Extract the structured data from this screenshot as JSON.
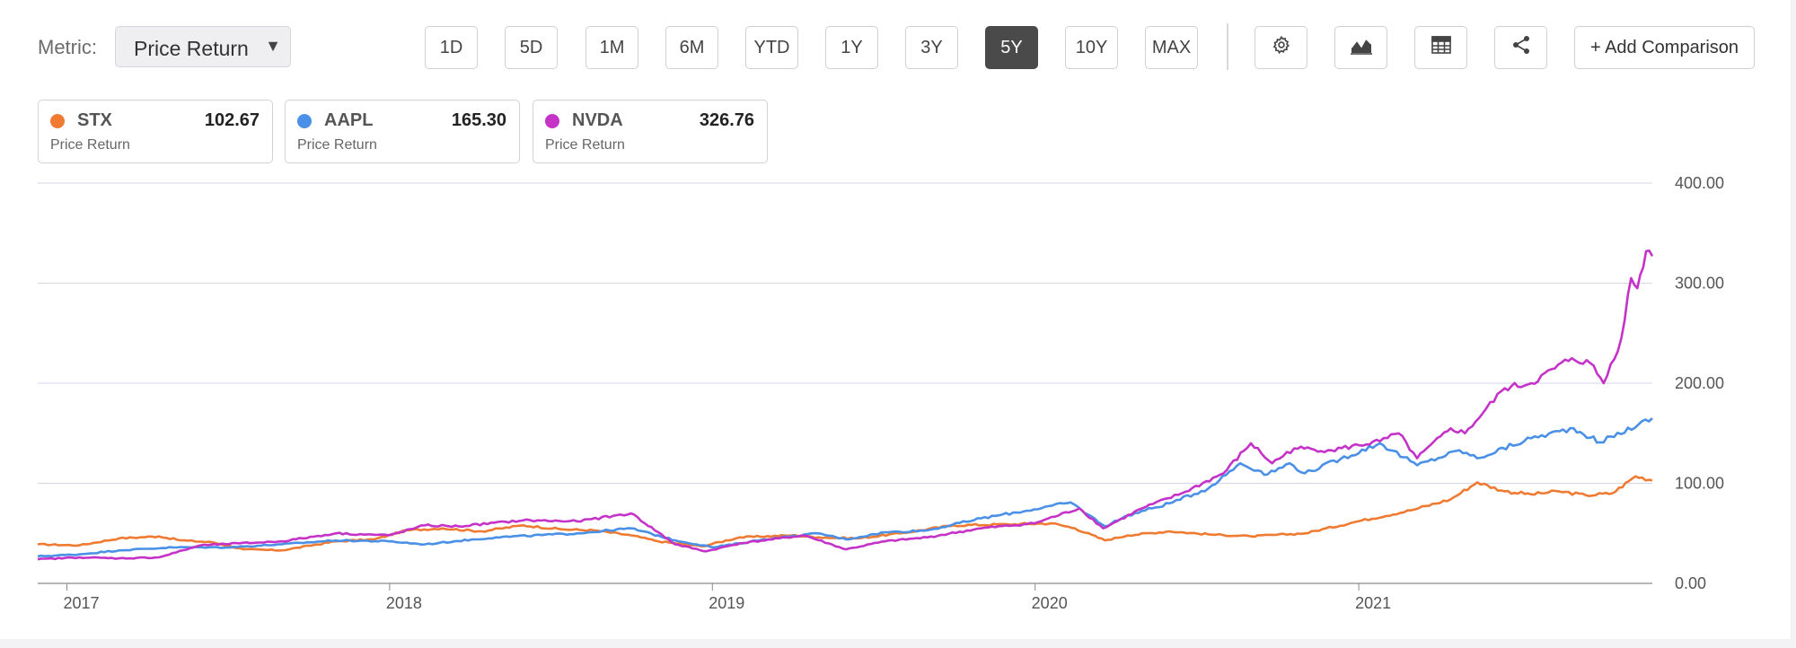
{
  "toolbar": {
    "metric_label": "Metric:",
    "metric_value": "Price Return",
    "ranges": [
      {
        "label": "1D",
        "active": false
      },
      {
        "label": "5D",
        "active": false
      },
      {
        "label": "1M",
        "active": false
      },
      {
        "label": "6M",
        "active": false
      },
      {
        "label": "YTD",
        "active": false
      },
      {
        "label": "1Y",
        "active": false
      },
      {
        "label": "3Y",
        "active": false
      },
      {
        "label": "5Y",
        "active": true
      },
      {
        "label": "10Y",
        "active": false
      },
      {
        "label": "MAX",
        "active": false
      }
    ],
    "icons": [
      "gear-icon",
      "chart-type-icon",
      "table-icon",
      "share-icon"
    ],
    "add_comparison": "+ Add Comparison"
  },
  "legend": [
    {
      "symbol": "STX",
      "value": "102.67",
      "metric": "Price Return",
      "color": "#ef7b32"
    },
    {
      "symbol": "AAPL",
      "value": "165.30",
      "metric": "Price Return",
      "color": "#4a90e6"
    },
    {
      "symbol": "NVDA",
      "value": "326.76",
      "metric": "Price Return",
      "color": "#c532c8"
    }
  ],
  "chart_data": {
    "type": "line",
    "title": "",
    "xlabel": "",
    "ylabel": "",
    "x_ticks": [
      "2017",
      "2018",
      "2019",
      "2020",
      "2021"
    ],
    "y_ticks": [
      "0.00",
      "100.00",
      "200.00",
      "300.00",
      "400.00"
    ],
    "ylim": [
      0,
      400
    ],
    "xlim": [
      "2016-11-29",
      "2021-11-29"
    ],
    "grid": true,
    "series": [
      {
        "name": "STX",
        "color": "#ef7b32",
        "points": [
          [
            "2016-11-29",
            39
          ],
          [
            "2017-01-15",
            38
          ],
          [
            "2017-03-01",
            45
          ],
          [
            "2017-04-15",
            47
          ],
          [
            "2017-05-10",
            43
          ],
          [
            "2017-06-15",
            41
          ],
          [
            "2017-07-20",
            34
          ],
          [
            "2017-09-01",
            33
          ],
          [
            "2017-11-01",
            42
          ],
          [
            "2017-12-15",
            44
          ],
          [
            "2018-01-20",
            53
          ],
          [
            "2018-03-01",
            55
          ],
          [
            "2018-04-15",
            52
          ],
          [
            "2018-06-01",
            58
          ],
          [
            "2018-07-15",
            54
          ],
          [
            "2018-08-20",
            53
          ],
          [
            "2018-10-01",
            48
          ],
          [
            "2018-11-01",
            42
          ],
          [
            "2018-12-20",
            37
          ],
          [
            "2019-02-01",
            46
          ],
          [
            "2019-04-01",
            48
          ],
          [
            "2019-05-01",
            46
          ],
          [
            "2019-06-15",
            45
          ],
          [
            "2019-08-01",
            50
          ],
          [
            "2019-10-01",
            58
          ],
          [
            "2019-12-01",
            59
          ],
          [
            "2020-01-20",
            60
          ],
          [
            "2020-02-15",
            55
          ],
          [
            "2020-03-20",
            43
          ],
          [
            "2020-04-15",
            48
          ],
          [
            "2020-06-01",
            52
          ],
          [
            "2020-07-15",
            49
          ],
          [
            "2020-09-01",
            47
          ],
          [
            "2020-11-01",
            50
          ],
          [
            "2020-12-31",
            62
          ],
          [
            "2021-03-01",
            73
          ],
          [
            "2021-04-15",
            84
          ],
          [
            "2021-05-15",
            101
          ],
          [
            "2021-06-15",
            92
          ],
          [
            "2021-07-15",
            89
          ],
          [
            "2021-08-15",
            92
          ],
          [
            "2021-09-15",
            88
          ],
          [
            "2021-10-15",
            90
          ],
          [
            "2021-11-10",
            107
          ],
          [
            "2021-11-29",
            103
          ]
        ]
      },
      {
        "name": "AAPL",
        "color": "#4a90e6",
        "points": [
          [
            "2016-11-29",
            27
          ],
          [
            "2017-01-15",
            29
          ],
          [
            "2017-03-01",
            33
          ],
          [
            "2017-05-01",
            36
          ],
          [
            "2017-07-01",
            36
          ],
          [
            "2017-09-01",
            39
          ],
          [
            "2017-11-01",
            43
          ],
          [
            "2017-12-31",
            42
          ],
          [
            "2018-02-10",
            39
          ],
          [
            "2018-03-15",
            42
          ],
          [
            "2018-05-01",
            46
          ],
          [
            "2018-08-01",
            50
          ],
          [
            "2018-10-01",
            55
          ],
          [
            "2018-11-20",
            43
          ],
          [
            "2019-01-03",
            36
          ],
          [
            "2019-03-01",
            44
          ],
          [
            "2019-05-01",
            50
          ],
          [
            "2019-06-01",
            44
          ],
          [
            "2019-07-15",
            51
          ],
          [
            "2019-09-01",
            53
          ],
          [
            "2019-11-01",
            65
          ],
          [
            "2019-12-31",
            74
          ],
          [
            "2020-02-10",
            81
          ],
          [
            "2020-03-20",
            57
          ],
          [
            "2020-04-15",
            68
          ],
          [
            "2020-06-01",
            80
          ],
          [
            "2020-07-15",
            95
          ],
          [
            "2020-08-20",
            120
          ],
          [
            "2020-09-20",
            109
          ],
          [
            "2020-10-15",
            120
          ],
          [
            "2020-11-01",
            110
          ],
          [
            "2021-01-25",
            140
          ],
          [
            "2021-03-08",
            118
          ],
          [
            "2021-04-25",
            133
          ],
          [
            "2021-05-15",
            125
          ],
          [
            "2021-07-15",
            145
          ],
          [
            "2021-09-01",
            155
          ],
          [
            "2021-10-01",
            141
          ],
          [
            "2021-11-29",
            165
          ]
        ]
      },
      {
        "name": "NVDA",
        "color": "#c532c8",
        "points": [
          [
            "2016-11-29",
            24
          ],
          [
            "2017-01-15",
            26
          ],
          [
            "2017-03-01",
            25
          ],
          [
            "2017-04-15",
            26
          ],
          [
            "2017-06-01",
            38
          ],
          [
            "2017-07-15",
            40
          ],
          [
            "2017-09-01",
            42
          ],
          [
            "2017-11-01",
            50
          ],
          [
            "2017-12-31",
            48
          ],
          [
            "2018-02-10",
            58
          ],
          [
            "2018-03-20",
            57
          ],
          [
            "2018-06-01",
            63
          ],
          [
            "2018-08-01",
            62
          ],
          [
            "2018-10-01",
            70
          ],
          [
            "2018-11-20",
            39
          ],
          [
            "2018-12-25",
            32
          ],
          [
            "2019-02-01",
            40
          ],
          [
            "2019-04-15",
            48
          ],
          [
            "2019-06-01",
            34
          ],
          [
            "2019-07-15",
            42
          ],
          [
            "2019-09-01",
            46
          ],
          [
            "2019-11-01",
            55
          ],
          [
            "2019-12-31",
            60
          ],
          [
            "2020-02-20",
            75
          ],
          [
            "2020-03-18",
            55
          ],
          [
            "2020-05-01",
            75
          ],
          [
            "2020-06-15",
            90
          ],
          [
            "2020-08-01",
            110
          ],
          [
            "2020-09-01",
            140
          ],
          [
            "2020-09-25",
            120
          ],
          [
            "2020-10-20",
            135
          ],
          [
            "2020-12-01",
            133
          ],
          [
            "2021-01-25",
            142
          ],
          [
            "2021-02-15",
            150
          ],
          [
            "2021-03-08",
            125
          ],
          [
            "2021-04-15",
            155
          ],
          [
            "2021-05-01",
            150
          ],
          [
            "2021-06-15",
            195
          ],
          [
            "2021-07-15",
            200
          ],
          [
            "2021-08-30",
            225
          ],
          [
            "2021-09-20",
            220
          ],
          [
            "2021-10-05",
            200
          ],
          [
            "2021-10-25",
            245
          ],
          [
            "2021-11-05",
            305
          ],
          [
            "2021-11-12",
            295
          ],
          [
            "2021-11-22",
            332
          ],
          [
            "2021-11-29",
            327
          ]
        ]
      }
    ]
  }
}
